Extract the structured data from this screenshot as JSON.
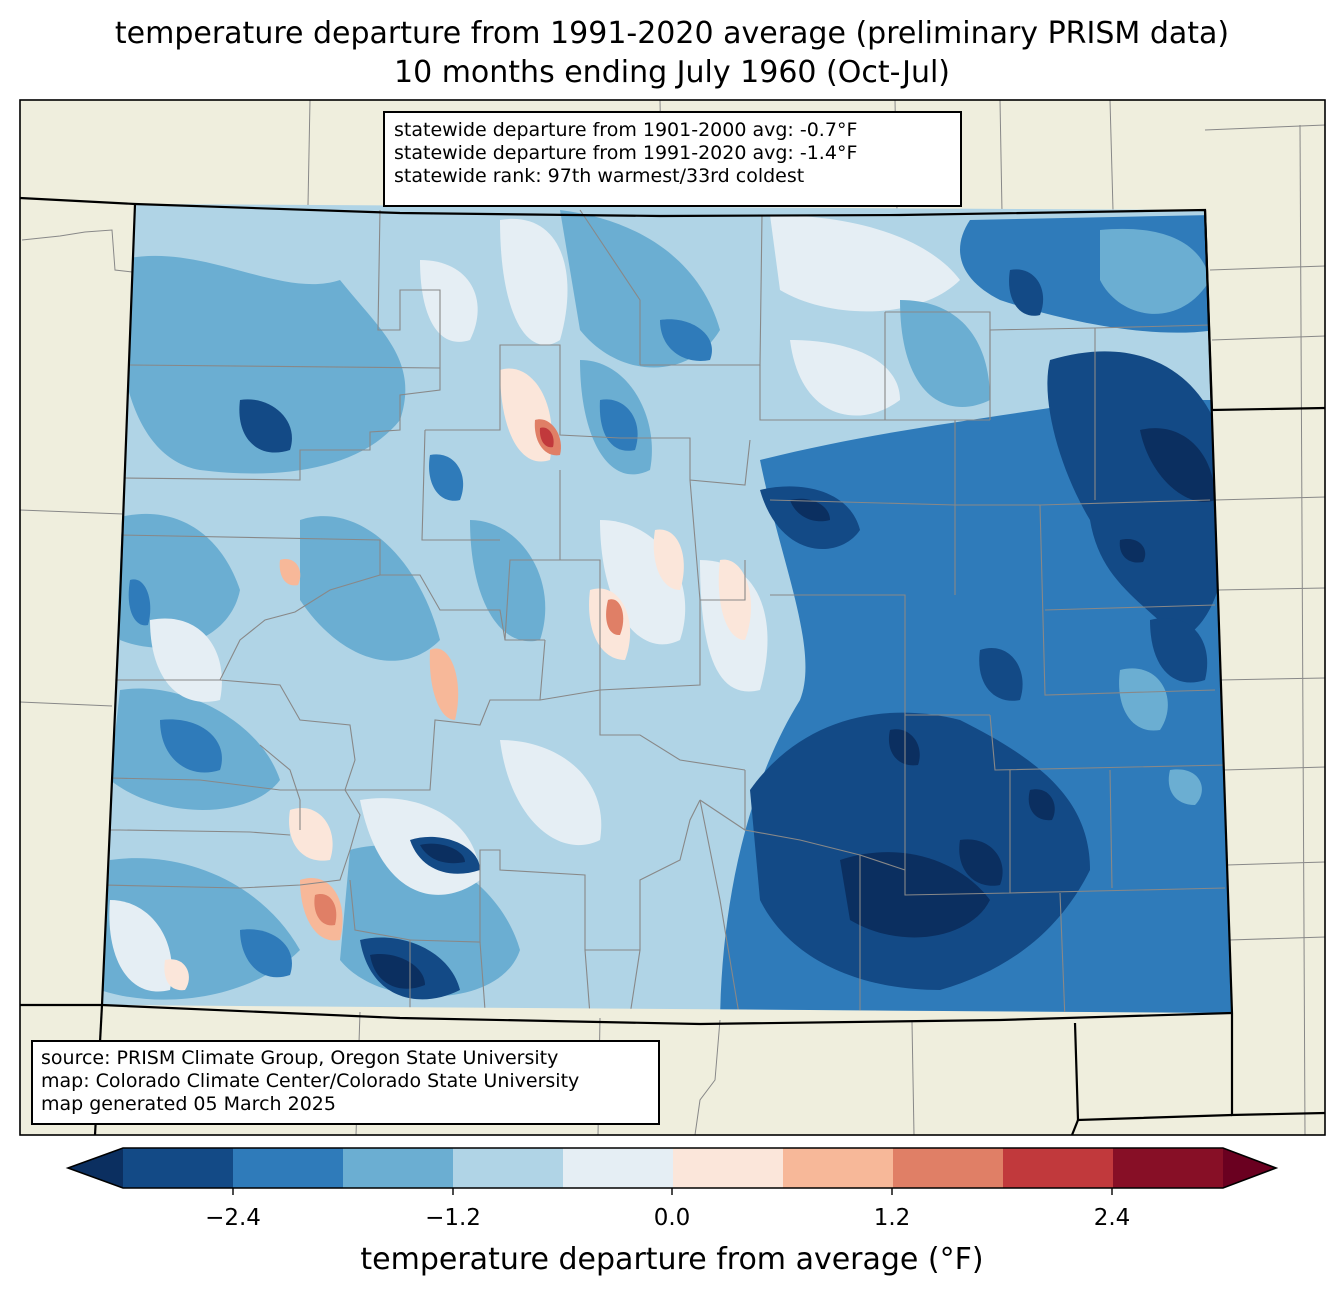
{
  "title": {
    "line1": "temperature departure from 1991-2020 average (preliminary PRISM data)",
    "line2": "10 months ending July 1960 (Oct-Jul)"
  },
  "stats": {
    "line1": "statewide departure from 1901-2000 avg: -0.7°F",
    "line2": "statewide departure from 1991-2020 avg: -1.4°F",
    "line3": "statewide rank: 97th warmest/33rd coldest"
  },
  "source": {
    "line1": "source: PRISM Climate Group, Oregon State University",
    "line2": "map: Colorado Climate Center/Colorado State University",
    "line3": "map generated 05 March 2025"
  },
  "colorbar": {
    "label": "temperature departure from average (°F)",
    "ticks": [
      "−2.4",
      "−1.2",
      "0.0",
      "1.2",
      "2.4"
    ],
    "bins": [
      {
        "range": "< -3.0",
        "color": "#0b2f60"
      },
      {
        "range": "-3.0 to -2.4",
        "color": "#134a86"
      },
      {
        "range": "-2.4 to -1.8",
        "color": "#2f7bba"
      },
      {
        "range": "-1.8 to -1.2",
        "color": "#6baed2"
      },
      {
        "range": "-1.2 to -0.6",
        "color": "#b0d4e6"
      },
      {
        "range": "-0.6 to 0.0",
        "color": "#e5eef4"
      },
      {
        "range": "0.0 to 0.6",
        "color": "#fbe6da"
      },
      {
        "range": "0.6 to 1.2",
        "color": "#f7b899"
      },
      {
        "range": "1.2 to 1.8",
        "color": "#e07f66"
      },
      {
        "range": "1.8 to 2.4",
        "color": "#c1393c"
      },
      {
        "range": "2.4 to 3.0",
        "color": "#870f26"
      },
      {
        "range": "> 3.0",
        "color": "#6a0020"
      }
    ]
  },
  "colors": {
    "land": "#efeedd",
    "county_lines": "#888888",
    "state_lines": "#000000"
  }
}
